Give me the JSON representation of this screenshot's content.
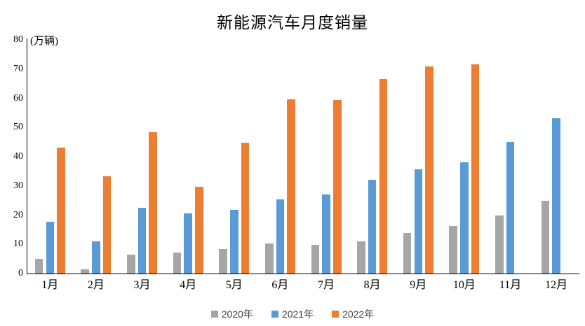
{
  "chart_data": {
    "type": "bar",
    "title": "新能源汽车月度销量",
    "unit_label": "(万辆)",
    "xlabel": "",
    "ylabel": "万辆",
    "categories": [
      "1月",
      "2月",
      "3月",
      "4月",
      "5月",
      "6月",
      "7月",
      "8月",
      "9月",
      "10月",
      "11月",
      "12月"
    ],
    "series": [
      {
        "name": "2020年",
        "color": "#A6A6A6",
        "values": [
          5.0,
          1.5,
          6.5,
          7.2,
          8.3,
          10.4,
          9.9,
          11.0,
          14.0,
          16.2,
          20.0,
          24.8
        ]
      },
      {
        "name": "2021年",
        "color": "#5B9BD5",
        "values": [
          17.8,
          11.1,
          22.5,
          20.6,
          21.7,
          25.5,
          27.1,
          32.0,
          35.6,
          38.2,
          45.0,
          53.2
        ]
      },
      {
        "name": "2022年",
        "color": "#ED7D31",
        "values": [
          43.0,
          33.4,
          48.3,
          29.8,
          44.7,
          59.7,
          59.4,
          66.7,
          71.0,
          71.5,
          null,
          null
        ]
      }
    ],
    "ylim": [
      0,
      80
    ],
    "ytick_step": 10,
    "ytick_labels": [
      "0",
      "10",
      "20",
      "30",
      "40",
      "50",
      "60",
      "70",
      "80"
    ],
    "grid": false,
    "legend_position": "bottom",
    "axis_color": "#000000",
    "text_color": "#000000",
    "background_color": "#FFFFFF"
  }
}
